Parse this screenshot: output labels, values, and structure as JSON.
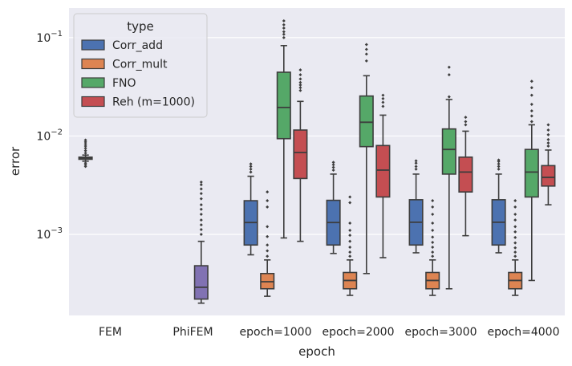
{
  "chart_data": {
    "type": "box",
    "xlabel": "epoch",
    "ylabel": "error",
    "yscale": "log",
    "ylim": [
      0.00015,
      0.2
    ],
    "yticks": [
      {
        "value": 0.001,
        "base": "10",
        "exp": "−3"
      },
      {
        "value": 0.01,
        "base": "10",
        "exp": "−2"
      },
      {
        "value": 0.1,
        "base": "10",
        "exp": "−1"
      }
    ],
    "grid": true,
    "categories": [
      "FEM",
      "PhiFEM",
      "epoch=1000",
      "epoch=2000",
      "epoch=3000",
      "epoch=4000"
    ],
    "legend": {
      "title": "type",
      "placement": "top-left",
      "entries": [
        {
          "label": "Corr_add",
          "color": "#4c72b0"
        },
        {
          "label": "Corr_mult",
          "color": "#dd8452"
        },
        {
          "label": "FNO",
          "color": "#55a868"
        },
        {
          "label": "Reh (m=1000)",
          "color": "#c44e52"
        }
      ]
    },
    "boxes": [
      {
        "category": "FEM",
        "group": "FEM",
        "color": "#4c72b0",
        "whislo": 0.00555,
        "q1": 0.0058,
        "med": 0.00595,
        "q3": 0.0061,
        "whishi": 0.0064,
        "fliers": [
          0.0049,
          0.0051,
          0.0053,
          0.0067,
          0.0071,
          0.0075,
          0.0079,
          0.0083,
          0.0087,
          0.0091
        ]
      },
      {
        "category": "PhiFEM",
        "group": "PhiFEM",
        "color": "#8172b3",
        "whislo": 0.0002,
        "q1": 0.00022,
        "med": 0.00029,
        "q3": 0.00048,
        "whishi": 0.00085,
        "fliers": [
          0.001,
          0.00112,
          0.00125,
          0.0014,
          0.0016,
          0.0018,
          0.002,
          0.0023,
          0.0026,
          0.0029,
          0.0032,
          0.0034
        ]
      },
      {
        "category": "epoch=1000",
        "group": "Corr_add",
        "color": "#4c72b0",
        "whislo": 0.00062,
        "q1": 0.00078,
        "med": 0.00132,
        "q3": 0.0022,
        "whishi": 0.0039,
        "fliers": [
          0.0043,
          0.0046,
          0.0049,
          0.0052
        ]
      },
      {
        "category": "epoch=1000",
        "group": "Corr_mult",
        "color": "#dd8452",
        "whislo": 0.000235,
        "q1": 0.00028,
        "med": 0.00033,
        "q3": 0.0004,
        "whishi": 0.00055,
        "fliers": [
          0.0006,
          0.00068,
          0.00078,
          0.00095,
          0.0012,
          0.0019,
          0.0022,
          0.0027
        ]
      },
      {
        "category": "epoch=1000",
        "group": "FNO",
        "color": "#55a868",
        "whislo": 0.00092,
        "q1": 0.0094,
        "med": 0.0195,
        "q3": 0.0445,
        "whishi": 0.083,
        "fliers": [
          0.1,
          0.108,
          0.115,
          0.125,
          0.135,
          0.148
        ]
      },
      {
        "category": "epoch=1000",
        "group": "Reh (m=1000)",
        "color": "#c44e52",
        "whislo": 0.00085,
        "q1": 0.0037,
        "med": 0.0068,
        "q3": 0.0115,
        "whishi": 0.0225,
        "fliers": [
          0.029,
          0.031,
          0.033,
          0.035,
          0.038,
          0.042,
          0.047
        ]
      },
      {
        "category": "epoch=2000",
        "group": "Corr_add",
        "color": "#4c72b0",
        "whislo": 0.00064,
        "q1": 0.00078,
        "med": 0.00132,
        "q3": 0.00222,
        "whishi": 0.0041,
        "fliers": [
          0.0045,
          0.0048,
          0.0051,
          0.0054
        ]
      },
      {
        "category": "epoch=2000",
        "group": "Corr_mult",
        "color": "#dd8452",
        "whislo": 0.00024,
        "q1": 0.00028,
        "med": 0.00034,
        "q3": 0.00041,
        "whishi": 0.00055,
        "fliers": [
          0.0006,
          0.00066,
          0.00074,
          0.00085,
          0.00098,
          0.0011,
          0.0013,
          0.0021,
          0.0024
        ]
      },
      {
        "category": "epoch=2000",
        "group": "FNO",
        "color": "#55a868",
        "whislo": 0.0004,
        "q1": 0.0078,
        "med": 0.0138,
        "q3": 0.0255,
        "whishi": 0.041,
        "fliers": [
          0.058,
          0.068,
          0.076,
          0.085
        ]
      },
      {
        "category": "epoch=2000",
        "group": "Reh (m=1000)",
        "color": "#c44e52",
        "whislo": 0.00058,
        "q1": 0.0024,
        "med": 0.0045,
        "q3": 0.008,
        "whishi": 0.0163,
        "fliers": [
          0.02,
          0.022,
          0.024,
          0.026
        ]
      },
      {
        "category": "epoch=3000",
        "group": "Corr_add",
        "color": "#4c72b0",
        "whislo": 0.00065,
        "q1": 0.00078,
        "med": 0.00133,
        "q3": 0.00225,
        "whishi": 0.0041,
        "fliers": [
          0.0046,
          0.0049,
          0.0053,
          0.0056
        ]
      },
      {
        "category": "epoch=3000",
        "group": "Corr_mult",
        "color": "#dd8452",
        "whislo": 0.00024,
        "q1": 0.00028,
        "med": 0.00034,
        "q3": 0.00041,
        "whishi": 0.00055,
        "fliers": [
          0.0006,
          0.00066,
          0.00074,
          0.00083,
          0.00094,
          0.0011,
          0.0013,
          0.0016,
          0.0019,
          0.0022
        ]
      },
      {
        "category": "epoch=3000",
        "group": "FNO",
        "color": "#55a868",
        "whislo": 0.00028,
        "q1": 0.0041,
        "med": 0.0073,
        "q3": 0.0118,
        "whishi": 0.0235,
        "fliers": [
          0.025,
          0.042,
          0.05
        ]
      },
      {
        "category": "epoch=3000",
        "group": "Reh (m=1000)",
        "color": "#c44e52",
        "whislo": 0.00097,
        "q1": 0.0027,
        "med": 0.0043,
        "q3": 0.0061,
        "whishi": 0.0112,
        "fliers": [
          0.013,
          0.014,
          0.0155
        ]
      },
      {
        "category": "epoch=4000",
        "group": "Corr_add",
        "color": "#4c72b0",
        "whislo": 0.00065,
        "q1": 0.00078,
        "med": 0.00133,
        "q3": 0.00225,
        "whishi": 0.0041,
        "fliers": [
          0.0046,
          0.0049,
          0.0052,
          0.0055,
          0.0057
        ]
      },
      {
        "category": "epoch=4000",
        "group": "Corr_mult",
        "color": "#dd8452",
        "whislo": 0.00024,
        "q1": 0.00028,
        "med": 0.00034,
        "q3": 0.00041,
        "whishi": 0.00055,
        "fliers": [
          0.0006,
          0.00066,
          0.00073,
          0.00082,
          0.00093,
          0.00106,
          0.0012,
          0.0014,
          0.0016,
          0.0019,
          0.0022
        ]
      },
      {
        "category": "epoch=4000",
        "group": "FNO",
        "color": "#55a868",
        "whislo": 0.00034,
        "q1": 0.0024,
        "med": 0.0043,
        "q3": 0.0073,
        "whishi": 0.013,
        "fliers": [
          0.014,
          0.016,
          0.018,
          0.021,
          0.026,
          0.031,
          0.036
        ]
      },
      {
        "category": "epoch=4000",
        "group": "Reh (m=1000)",
        "color": "#c44e52",
        "whislo": 0.002,
        "q1": 0.0031,
        "med": 0.0038,
        "q3": 0.005,
        "whishi": 0.0072,
        "fliers": [
          0.0079,
          0.0085,
          0.0092,
          0.0103,
          0.0115,
          0.013
        ]
      }
    ]
  }
}
